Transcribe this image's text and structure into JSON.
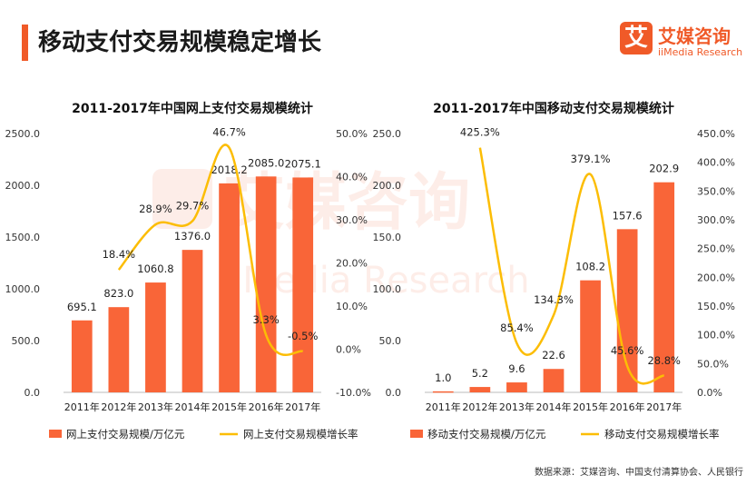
{
  "page": {
    "title": "移动支付交易规模稳定增长",
    "logo_mark": "艾",
    "logo_name": "艾媒咨询",
    "logo_sub": "iiMedia Research",
    "source_label": "数据来源：",
    "source_text": "艾媒咨询、中国支付清算协会、人民银行",
    "watermark_cn": "艾媒咨询",
    "watermark_en": "iiMedia Research"
  },
  "colors": {
    "bar": "#f96538",
    "line": "#fcbd05",
    "accent": "#f05a28"
  },
  "chart_data": [
    {
      "type": "bar",
      "title": "2011-2017年中国网上支付交易规模统计",
      "categories": [
        "2011年",
        "2012年",
        "2013年",
        "2014年",
        "2015年",
        "2016年",
        "2017年"
      ],
      "series": [
        {
          "name": "网上支付交易规模/万亿元",
          "type": "bar",
          "axis": "left",
          "values": [
            695.1,
            823.0,
            1060.8,
            1376.0,
            2018.2,
            2085.0,
            2075.1
          ],
          "labels": [
            "695.1",
            "823.0",
            "1060.8",
            "1376.0",
            "2018.2",
            "2085.0",
            "2075.1"
          ]
        },
        {
          "name": "网上支付交易规模增长率",
          "type": "line",
          "axis": "right",
          "values": [
            null,
            18.4,
            28.9,
            29.7,
            46.7,
            3.3,
            -0.5
          ],
          "labels": [
            "",
            "18.4%",
            "28.9%",
            "29.7%",
            "46.7%",
            "3.3%",
            "-0.5%"
          ]
        }
      ],
      "y_left": {
        "range": [
          0,
          2500
        ],
        "ticks": [
          "0.0",
          "500.0",
          "1000.0",
          "1500.0",
          "2000.0",
          "2500.0"
        ]
      },
      "y_right": {
        "range": [
          -10,
          50
        ],
        "ticks": [
          "-10.0%",
          "0.0%",
          "10.0%",
          "20.0%",
          "30.0%",
          "40.0%",
          "50.0%"
        ]
      },
      "legend": "bottom",
      "grid": false
    },
    {
      "type": "bar",
      "title": "2011-2017年中国移动支付交易规模统计",
      "categories": [
        "2011年",
        "2012年",
        "2013年",
        "2014年",
        "2015年",
        "2016年",
        "2017年"
      ],
      "series": [
        {
          "name": "移动支付交易规模/万亿元",
          "type": "bar",
          "axis": "left",
          "values": [
            1.0,
            5.2,
            9.6,
            22.6,
            108.2,
            157.6,
            202.9
          ],
          "labels": [
            "1.0",
            "5.2",
            "9.6",
            "22.6",
            "108.2",
            "157.6",
            "202.9"
          ]
        },
        {
          "name": "移动支付交易规模增长率",
          "type": "line",
          "axis": "right",
          "values": [
            null,
            425.3,
            85.4,
            134.3,
            379.1,
            45.6,
            28.8
          ],
          "labels": [
            "",
            "425.3%",
            "85.4%",
            "134.3%",
            "379.1%",
            "45.6%",
            "28.8%"
          ]
        }
      ],
      "y_left": {
        "range": [
          0,
          250
        ],
        "ticks": [
          "0.0",
          "50.0",
          "100.0",
          "150.0",
          "200.0",
          "250.0"
        ]
      },
      "y_right": {
        "range": [
          0,
          450
        ],
        "ticks": [
          "0.0%",
          "50.0%",
          "100.0%",
          "150.0%",
          "200.0%",
          "250.0%",
          "300.0%",
          "350.0%",
          "400.0%",
          "450.0%"
        ]
      },
      "legend": "bottom",
      "grid": false
    }
  ]
}
